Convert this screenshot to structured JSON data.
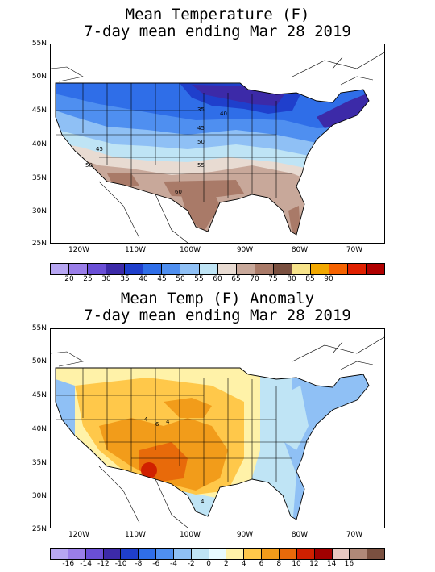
{
  "top": {
    "title_line1": "Mean Temperature (F)",
    "title_line2": "7-day mean ending Mar 28 2019",
    "lat_labels": [
      "55N",
      "50N",
      "45N",
      "40N",
      "35N",
      "30N",
      "25N"
    ],
    "lon_labels": [
      "120W",
      "110W",
      "100W",
      "90W",
      "80W",
      "70W"
    ],
    "contour_labels": [
      "35",
      "40",
      "45",
      "45",
      "50",
      "50",
      "55",
      "60"
    ],
    "legend_labels": [
      "20",
      "25",
      "30",
      "35",
      "40",
      "45",
      "50",
      "55",
      "60",
      "65",
      "70",
      "75",
      "80",
      "85",
      "90"
    ],
    "legend_colors": [
      "#b7a6f2",
      "#9a7ee8",
      "#6a4fd6",
      "#3c2aa8",
      "#1f3fcc",
      "#2f6ee8",
      "#4f8ff0",
      "#8fc0f5",
      "#bfe4f5",
      "#e8dbd2",
      "#c8a89a",
      "#a97a68",
      "#7a5040",
      "#f7e38a",
      "#f2a800",
      "#f56200",
      "#e02000",
      "#b00000"
    ]
  },
  "bottom": {
    "title_line1": "Mean Temp (F) Anomaly",
    "title_line2": "7-day mean ending Mar 28 2019",
    "lat_labels": [
      "55N",
      "50N",
      "45N",
      "40N",
      "35N",
      "30N",
      "25N"
    ],
    "lon_labels": [
      "120W",
      "110W",
      "100W",
      "90W",
      "80W",
      "70W"
    ],
    "contour_labels": [
      "4",
      "6",
      "4",
      "4"
    ],
    "legend_labels": [
      "-16",
      "-14",
      "-12",
      "-10",
      "-8",
      "-6",
      "-4",
      "-2",
      "0",
      "2",
      "4",
      "6",
      "8",
      "10",
      "12",
      "14",
      "16"
    ],
    "legend_colors": [
      "#b7a6f2",
      "#9a7ee8",
      "#6a4fd6",
      "#3c2aa8",
      "#1f3fcc",
      "#2f6ee8",
      "#4f8ff0",
      "#8fc0f5",
      "#bfe4f5",
      "#e8fbff",
      "#fff2a8",
      "#ffc84a",
      "#f29c1a",
      "#e86a0a",
      "#d02000",
      "#a00000",
      "#e8c8c0",
      "#b08878",
      "#7a5040"
    ]
  }
}
